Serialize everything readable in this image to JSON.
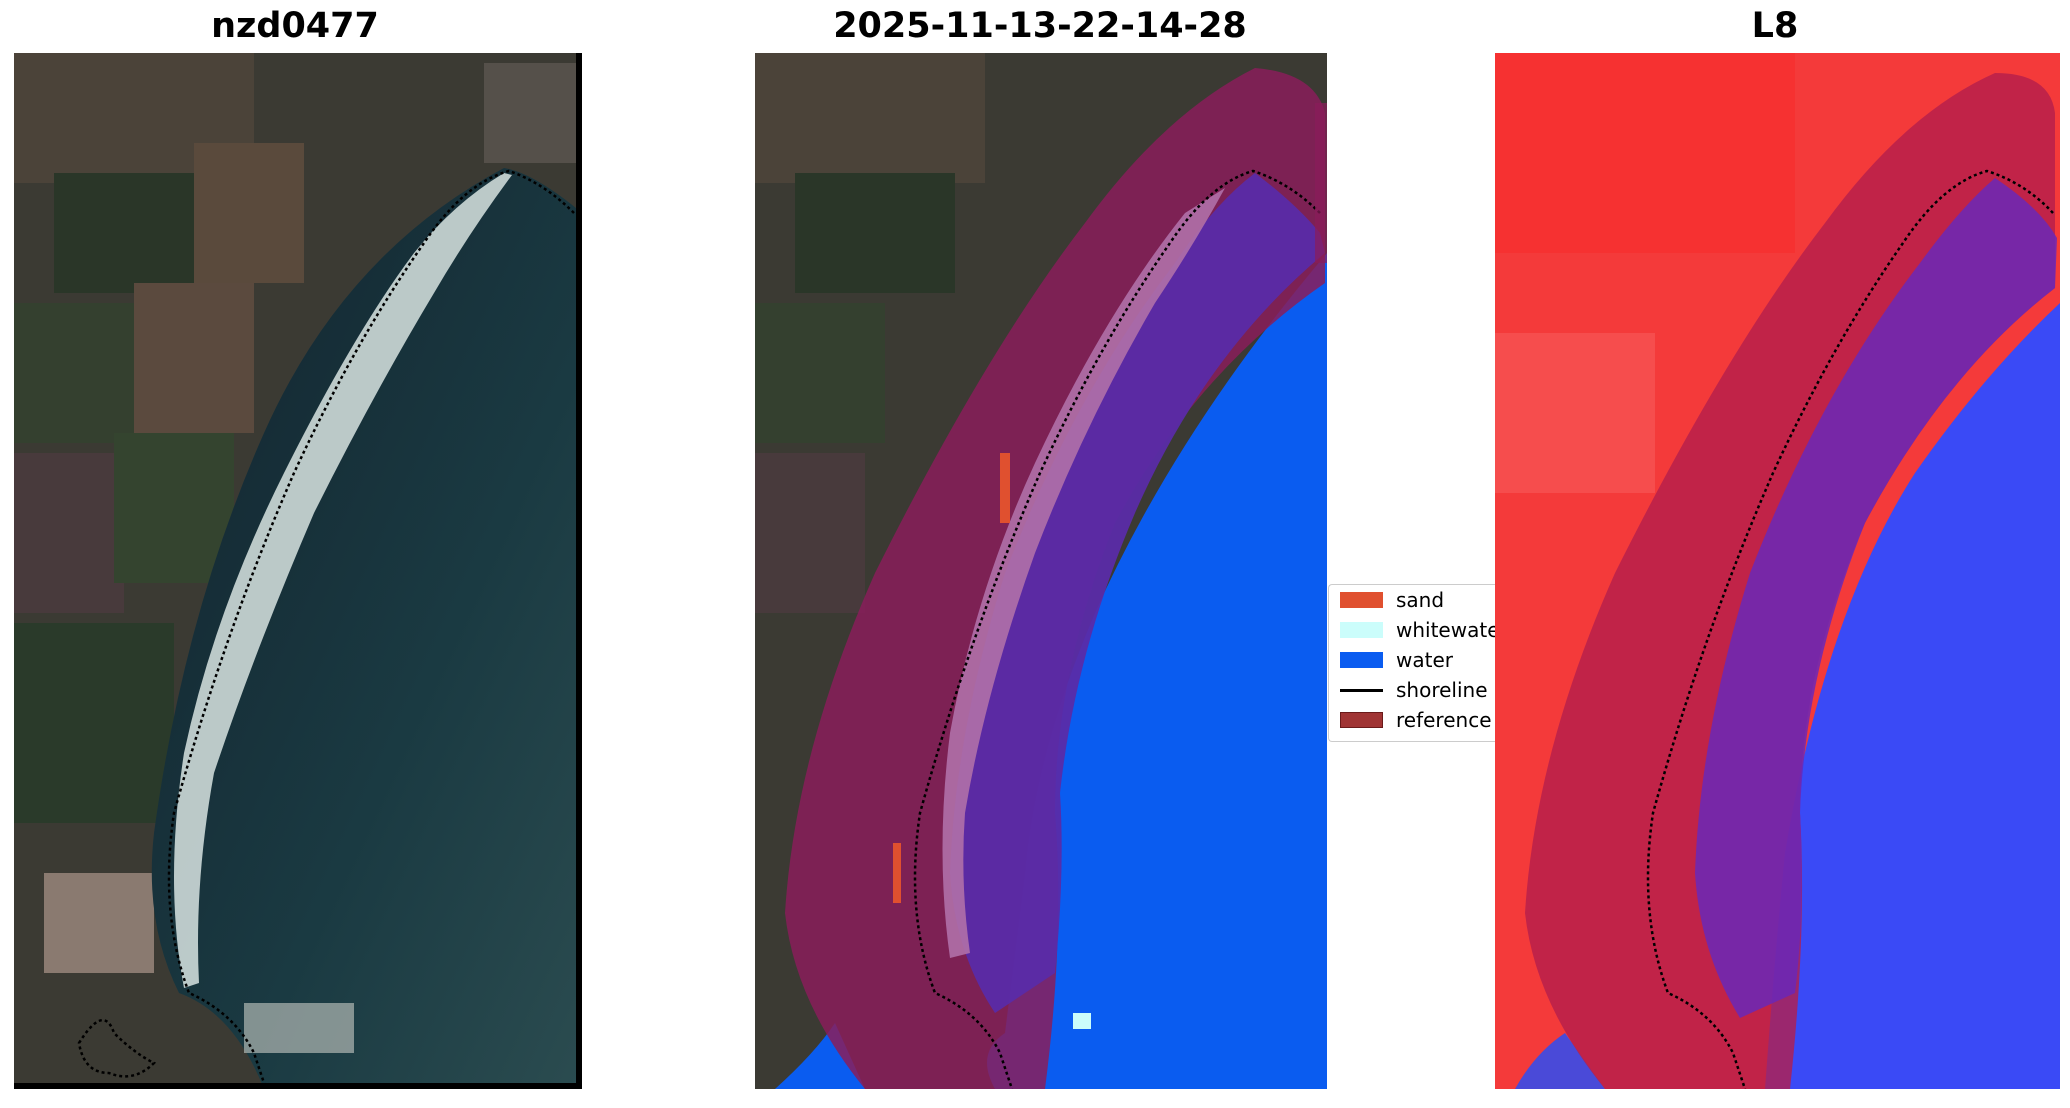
{
  "panels": [
    {
      "title": "nzd0477"
    },
    {
      "title": "2025-11-13-22-14-28"
    },
    {
      "title": "L8"
    }
  ],
  "legend": {
    "items": [
      {
        "label": "sand",
        "color": "#e0502f",
        "kind": "patch"
      },
      {
        "label": "whitewater",
        "color": "#cbfdfb",
        "kind": "patch"
      },
      {
        "label": "water",
        "color": "#0a5cf0",
        "kind": "patch"
      },
      {
        "label": "shoreline",
        "color": "#000000",
        "kind": "line"
      },
      {
        "label": "reference",
        "color": "#a03434",
        "kind": "patch"
      }
    ]
  }
}
